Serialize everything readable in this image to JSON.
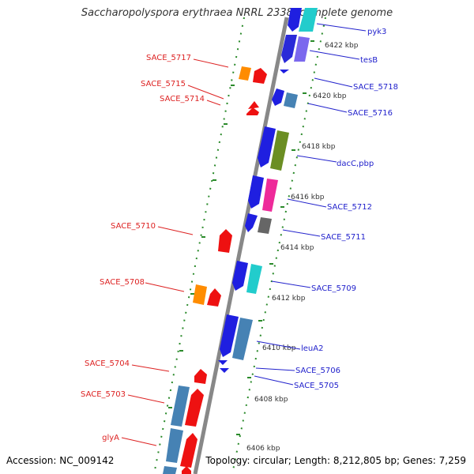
{
  "title": "Saccharopolyspora erythraea NRRL 2338, complete genome",
  "footer": {
    "accession": "Accession: NC_009142",
    "topology": "Topology: circular; Length: 8,212,805 bp; Genes: 7,259"
  },
  "colors": {
    "forward_label": "#dd2222",
    "reverse_label": "#2222cc",
    "backbone": "#888888",
    "guide_dots": "#2a8a2a"
  },
  "ticks": [
    "6422 kbp",
    "6420 kbp",
    "6418 kbp",
    "6416 kbp",
    "6414 kbp",
    "6412 kbp",
    "6410 kbp",
    "6408 kbp",
    "6406 kbp"
  ],
  "left_labels": [
    "SACE_5717",
    "SACE_5715",
    "SACE_5714",
    "SACE_5710",
    "SACE_5708",
    "SACE_5704",
    "SACE_5703",
    "glyA"
  ],
  "right_labels": [
    "pyk3",
    "tesB",
    "SACE_5718",
    "SACE_5716",
    "dacC,pbp",
    "SACE_5712",
    "SACE_5711",
    "SACE_5709",
    "leuA2",
    "SACE_5706",
    "SACE_5705"
  ]
}
